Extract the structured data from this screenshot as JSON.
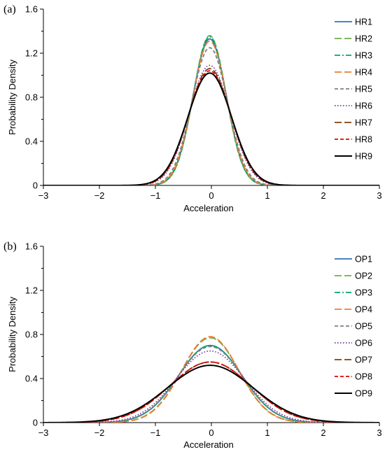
{
  "chart_data": [
    {
      "type": "line",
      "panel_label": "(a)",
      "xlabel": "Acceleration",
      "ylabel": "Probability Density",
      "xlim": [
        -3,
        3
      ],
      "ylim": [
        0,
        1.6
      ],
      "xticks": [
        "−3",
        "−2",
        "−1",
        "0",
        "1",
        "2",
        "3"
      ],
      "yticks": [
        "0",
        "0.4",
        "0.8",
        "1.2",
        "1.6"
      ],
      "grid": false,
      "legend_position": "right",
      "series": [
        {
          "name": "HR1",
          "color": "#2e75b6",
          "dash": "solid",
          "mean": -0.03,
          "peak": 1.33
        },
        {
          "name": "HR2",
          "color": "#70ad47",
          "dash": "longdash",
          "mean": -0.03,
          "peak": 1.36
        },
        {
          "name": "HR3",
          "color": "#00a56e",
          "dash": "dashdot",
          "mean": -0.03,
          "peak": 1.35
        },
        {
          "name": "HR4",
          "color": "#ed7d31",
          "dash": "longdash",
          "mean": -0.03,
          "peak": 1.31
        },
        {
          "name": "HR5",
          "color": "#808080",
          "dash": "dashed",
          "mean": -0.03,
          "peak": 1.25
        },
        {
          "name": "HR6",
          "color": "#7030a0",
          "dash": "dotted",
          "mean": -0.03,
          "peak": 1.09
        },
        {
          "name": "HR7",
          "color": "#843c0c",
          "dash": "longdash",
          "mean": -0.03,
          "peak": 1.06
        },
        {
          "name": "HR8",
          "color": "#e00000",
          "dash": "dashed",
          "mean": -0.03,
          "peak": 1.04
        },
        {
          "name": "HR9",
          "color": "#000000",
          "dash": "solid",
          "mean": -0.03,
          "peak": 1.02
        }
      ]
    },
    {
      "type": "line",
      "panel_label": "(b)",
      "xlabel": "Acceleration",
      "ylabel": "Probability Density",
      "xlim": [
        -3,
        3
      ],
      "ylim": [
        0,
        1.6
      ],
      "xticks": [
        "−3",
        "−2",
        "−1",
        "0",
        "1",
        "2",
        "3"
      ],
      "yticks": [
        "0",
        "0.4",
        "0.8",
        "1.2",
        "1.6"
      ],
      "grid": false,
      "legend_position": "right",
      "series": [
        {
          "name": "OP1",
          "color": "#2e75b6",
          "dash": "solid",
          "mean": -0.02,
          "peak": 0.7
        },
        {
          "name": "OP2",
          "color": "#70ad47",
          "dash": "longdash",
          "mean": -0.02,
          "peak": 0.77
        },
        {
          "name": "OP3",
          "color": "#00a56e",
          "dash": "dashdot",
          "mean": -0.02,
          "peak": 0.7
        },
        {
          "name": "OP4",
          "color": "#ed7d31",
          "dash": "longdash",
          "mean": -0.02,
          "peak": 0.78
        },
        {
          "name": "OP5",
          "color": "#808080",
          "dash": "dashed",
          "mean": -0.02,
          "peak": 0.69
        },
        {
          "name": "OP6",
          "color": "#7030a0",
          "dash": "dotted",
          "mean": -0.02,
          "peak": 0.65
        },
        {
          "name": "OP7",
          "color": "#843c0c",
          "dash": "longdash",
          "mean": -0.02,
          "peak": 0.55
        },
        {
          "name": "OP8",
          "color": "#e00000",
          "dash": "dashed",
          "mean": -0.02,
          "peak": 0.55
        },
        {
          "name": "OP9",
          "color": "#000000",
          "dash": "solid",
          "mean": -0.02,
          "peak": 0.52
        }
      ]
    }
  ]
}
